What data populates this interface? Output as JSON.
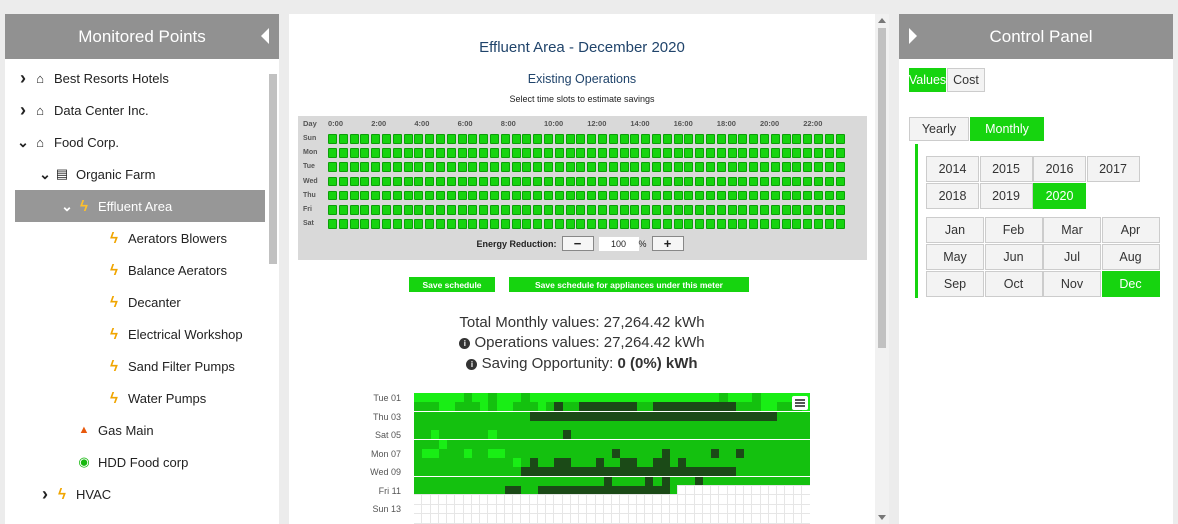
{
  "left_panel": {
    "title": "Monitored Points",
    "tree": [
      {
        "label": "Best Resorts Hotels",
        "icon": "bank-icon",
        "chevron": "right"
      },
      {
        "label": "Data Center Inc.",
        "icon": "bank-icon",
        "chevron": "right"
      },
      {
        "label": "Food Corp.",
        "icon": "bank-icon",
        "chevron": "down"
      },
      {
        "label": "Organic Farm",
        "icon": "building-icon",
        "chevron": "down"
      },
      {
        "label": "Effluent Area",
        "icon": "bolt-icon",
        "chevron": "down",
        "selected": true
      },
      {
        "label": "Aerators Blowers",
        "icon": "bolt-icon"
      },
      {
        "label": "Balance Aerators",
        "icon": "bolt-icon"
      },
      {
        "label": "Decanter",
        "icon": "bolt-icon"
      },
      {
        "label": "Electrical Workshop",
        "icon": "bolt-icon"
      },
      {
        "label": "Sand Filter Pumps",
        "icon": "bolt-icon"
      },
      {
        "label": "Water Pumps",
        "icon": "bolt-icon"
      },
      {
        "label": "Gas Main",
        "icon": "flame-icon"
      },
      {
        "label": "HDD Food corp",
        "icon": "target-icon"
      },
      {
        "label": "HVAC",
        "icon": "bolt-icon",
        "chevron": "right"
      }
    ]
  },
  "center": {
    "title": "Effluent Area - December 2020",
    "subtitle": "Existing Operations",
    "hint": "Select time slots to estimate savings",
    "schedule": {
      "day_header": "Day",
      "hours": [
        "0:00",
        "2:00",
        "4:00",
        "6:00",
        "8:00",
        "10:00",
        "12:00",
        "14:00",
        "16:00",
        "18:00",
        "20:00",
        "22:00"
      ],
      "days": [
        "Sun",
        "Mon",
        "Tue",
        "Wed",
        "Thu",
        "Fri",
        "Sat"
      ],
      "slots_per_day": 48,
      "active_color": "#16d40f"
    },
    "energy_reduction": {
      "label": "Energy Reduction:",
      "minus": "−",
      "value": "100",
      "unit": "%",
      "plus": "+"
    },
    "buttons": {
      "save_schedule": "Save schedule",
      "save_appliances": "Save schedule for appliances under this meter"
    },
    "stats": {
      "total": "Total Monthly values: 27,264.42 kWh",
      "operations": "Operations values: 27,264.42 kWh",
      "saving_prefix": "Saving Opportunity: ",
      "saving_value": "0 (0%) kWh"
    },
    "heatmap": {
      "row_labels": [
        "Tue 01",
        "Thu 03",
        "Sat 05",
        "Mon 07",
        "Wed 09",
        "Fri 11",
        "Sun 13"
      ],
      "colors": {
        "light": "#19ee15",
        "mid": "#14c10f",
        "dark": "#1b4a17",
        "empty": "#ffffff"
      }
    }
  },
  "right_panel": {
    "title": "Control Panel",
    "mode_tabs": [
      {
        "label": "Values",
        "active": true
      },
      {
        "label": "Cost",
        "active": false
      }
    ],
    "period_tabs": [
      {
        "label": "Yearly",
        "active": false
      },
      {
        "label": "Monthly",
        "active": true
      }
    ],
    "years": [
      "2014",
      "2015",
      "2016",
      "2017",
      "2018",
      "2019",
      "2020"
    ],
    "selected_year": "2020",
    "months": [
      "Jan",
      "Feb",
      "Mar",
      "Apr",
      "May",
      "Jun",
      "Jul",
      "Aug",
      "Sep",
      "Oct",
      "Nov",
      "Dec"
    ],
    "selected_month": "Dec",
    "accent": "#16d40f"
  }
}
